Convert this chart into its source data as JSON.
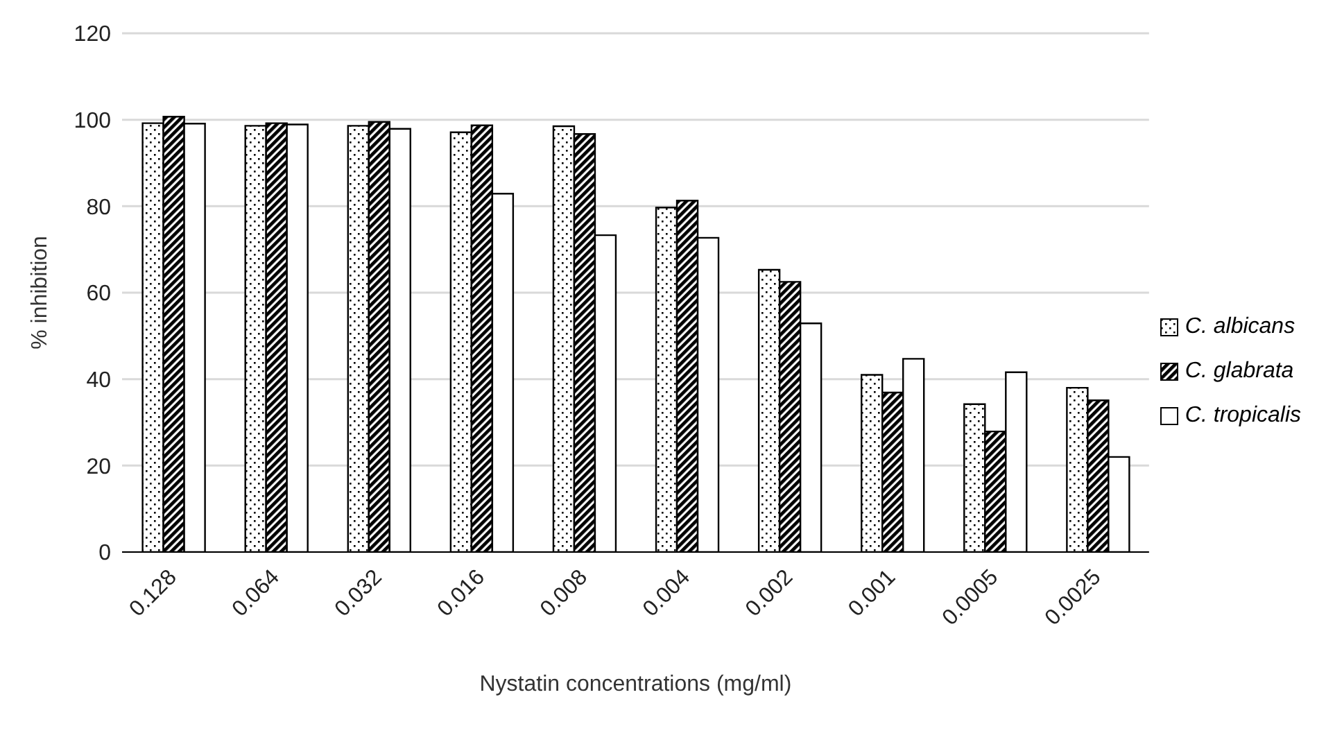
{
  "chart_data": {
    "type": "bar",
    "xlabel": "Nystatin concentrations (mg/ml)",
    "ylabel": "% inhibition",
    "categories": [
      "0.128",
      "0.064",
      "0.032",
      "0.016",
      "0.008",
      "0.004",
      "0.002",
      "0.001",
      "0.0005",
      "0.0025"
    ],
    "series": [
      {
        "name": "C. albicans",
        "color": "#000000",
        "values": [
          99.2,
          98.6,
          98.6,
          97.1,
          98.5,
          79.7,
          65.3,
          41.0,
          34.2,
          38.0
        ]
      },
      {
        "name": "C. glabrata",
        "color": "#000000",
        "values": [
          100.7,
          99.2,
          99.5,
          98.7,
          96.7,
          81.3,
          62.5,
          36.9,
          27.9,
          35.1
        ]
      },
      {
        "name": "C. tropicalis",
        "color": "#ffffff",
        "values": [
          99.1,
          98.9,
          97.9,
          82.9,
          73.3,
          72.7,
          52.9,
          44.7,
          41.6,
          22.0
        ]
      }
    ],
    "ylim": [
      0,
      120
    ],
    "yticks": [
      0,
      20,
      40,
      60,
      80,
      100,
      120
    ],
    "grid": "y",
    "legend": "right"
  }
}
